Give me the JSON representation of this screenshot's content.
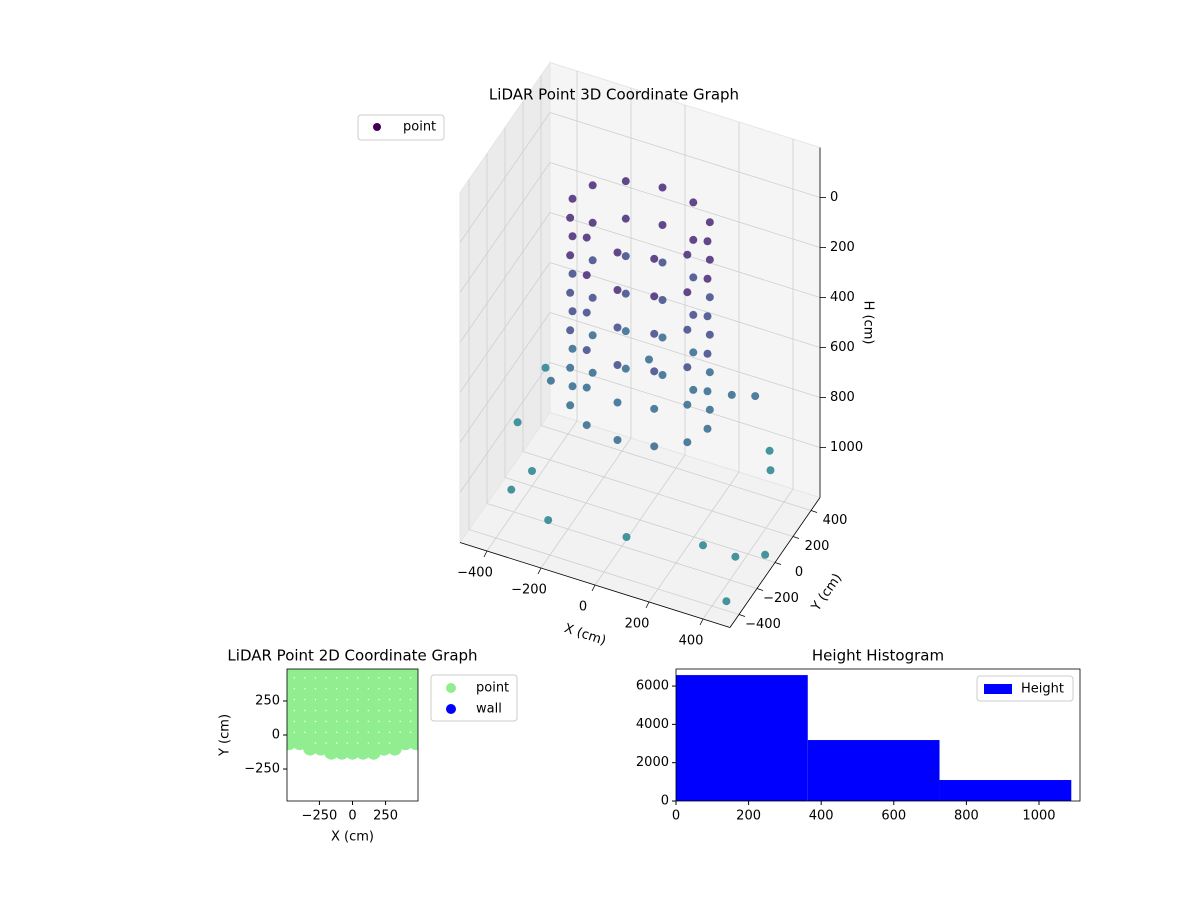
{
  "chart_data": [
    {
      "type": "scatter3d",
      "title": "LiDAR Point 3D Coordinate Graph",
      "xlabel": "X (cm)",
      "ylabel": "Y (cm)",
      "zlabel": "H (cm)",
      "xlim": [
        -500,
        500
      ],
      "ylim": [
        -500,
        500
      ],
      "zlim": [
        -200,
        1200
      ],
      "xticks": [
        {
          "value": -400,
          "label": "−400"
        },
        {
          "value": -200,
          "label": "−200"
        },
        0,
        200,
        400
      ],
      "yticks": [
        {
          "value": -400,
          "label": "−400"
        },
        {
          "value": -200,
          "label": "−200"
        },
        0,
        200,
        400
      ],
      "zticks": [
        0,
        200,
        400,
        600,
        800,
        1000
      ],
      "grid": true,
      "legend": "upper left",
      "series": [
        {
          "name": "point",
          "colormap": "viridis",
          "x": [
            250,
            217,
            125,
            0,
            -125,
            -217,
            -250,
            -217,
            -125,
            0,
            125,
            217,
            250,
            217,
            125,
            0,
            -125,
            -217,
            -250,
            -217,
            -125,
            0,
            125,
            217,
            250,
            217,
            125,
            0,
            -125,
            -217,
            -250,
            -217,
            -125,
            0,
            125,
            217,
            250,
            217,
            125,
            0,
            -125,
            -217,
            -250,
            -217,
            -125,
            0,
            125,
            217,
            250,
            217,
            125,
            0,
            -125,
            -217,
            -250,
            -217,
            -125,
            0,
            125,
            217,
            250,
            217,
            125,
            0,
            -125,
            -217,
            -250,
            -217,
            -125,
            0,
            125,
            217,
            -420,
            -380,
            -300,
            350,
            420,
            450,
            300,
            -200,
            100,
            -450,
            380,
            -350,
            480,
            200,
            -100,
            460
          ],
          "y": [
            0,
            125,
            217,
            250,
            217,
            125,
            0,
            -125,
            -217,
            -250,
            -217,
            -125,
            0,
            125,
            217,
            250,
            217,
            125,
            0,
            -125,
            -217,
            -250,
            -217,
            -125,
            0,
            125,
            217,
            250,
            217,
            125,
            0,
            -125,
            -217,
            -250,
            -217,
            -125,
            0,
            125,
            217,
            250,
            217,
            125,
            0,
            -125,
            -217,
            -250,
            -217,
            -125,
            0,
            125,
            217,
            250,
            217,
            125,
            0,
            -125,
            -217,
            -250,
            -217,
            -125,
            0,
            125,
            217,
            250,
            217,
            125,
            0,
            -125,
            -217,
            -250,
            -217,
            -125,
            -100,
            150,
            -300,
            -350,
            -200,
            100,
            380,
            -420,
            -450,
            300,
            300,
            -380,
            -50,
            420,
            400,
            -420
          ],
          "z": [
            0,
            0,
            0,
            0,
            0,
            0,
            0,
            0,
            0,
            0,
            0,
            0,
            150,
            150,
            150,
            150,
            150,
            150,
            150,
            150,
            150,
            150,
            150,
            150,
            300,
            300,
            300,
            300,
            300,
            300,
            300,
            300,
            300,
            300,
            300,
            300,
            450,
            450,
            450,
            450,
            450,
            450,
            450,
            450,
            450,
            450,
            450,
            450,
            600,
            600,
            600,
            600,
            600,
            600,
            600,
            600,
            600,
            600,
            600,
            600,
            750,
            750,
            750,
            750,
            750,
            750,
            750,
            750,
            750,
            750,
            750,
            750,
            900,
            850,
            950,
            1000,
            1100,
            900,
            800,
            1050,
            1000,
            900,
            950,
            1000,
            1150,
            850,
            800,
            1150
          ]
        }
      ]
    },
    {
      "type": "scatter",
      "title": "LiDAR Point 2D Coordinate Graph",
      "xlabel": "X (cm)",
      "ylabel": "Y (cm)",
      "xlim": [
        -495,
        495
      ],
      "ylim": [
        -485,
        485
      ],
      "xticks": [
        {
          "value": -250,
          "label": "−250"
        },
        0,
        250
      ],
      "yticks": [
        {
          "value": -250,
          "label": "−250"
        },
        0,
        250
      ],
      "legend": "outside upper right",
      "series": [
        {
          "name": "point",
          "color": "#90ee90",
          "x": [
            -480,
            -400,
            -320,
            -240,
            -160,
            -80,
            0,
            80,
            160,
            240,
            320,
            400,
            480,
            -480,
            -400,
            -320,
            -240,
            -160,
            -80,
            0,
            80,
            160,
            240,
            320,
            400,
            480,
            -480,
            -400,
            -320,
            -240,
            -160,
            -80,
            0,
            80,
            160,
            240,
            320,
            400,
            480,
            -480,
            -400,
            -320,
            -240,
            -160,
            -80,
            0,
            80,
            160,
            240,
            320,
            400,
            480,
            -480,
            -400,
            -320,
            -240,
            -160,
            -80,
            0,
            80,
            160,
            240,
            320,
            400,
            480,
            -480,
            -400,
            -320,
            -240,
            -160,
            -80,
            0,
            80,
            160,
            240,
            320,
            400,
            480,
            -480,
            -400,
            -320,
            -240,
            -160,
            -80,
            0,
            80,
            160,
            240,
            320,
            400,
            480,
            -480,
            -400,
            400,
            480,
            -320,
            -240,
            -160,
            -80,
            0,
            80,
            160,
            240,
            320,
            -160,
            -80,
            0,
            80,
            160
          ],
          "y": [
            460,
            460,
            460,
            460,
            460,
            460,
            460,
            460,
            460,
            460,
            460,
            460,
            460,
            380,
            380,
            380,
            380,
            380,
            380,
            380,
            380,
            380,
            380,
            380,
            380,
            380,
            300,
            300,
            300,
            300,
            300,
            300,
            300,
            300,
            300,
            300,
            300,
            300,
            300,
            220,
            220,
            220,
            220,
            220,
            220,
            220,
            220,
            220,
            220,
            220,
            220,
            220,
            140,
            140,
            140,
            140,
            140,
            140,
            140,
            140,
            140,
            140,
            140,
            140,
            140,
            60,
            60,
            60,
            60,
            60,
            60,
            60,
            60,
            60,
            60,
            60,
            60,
            60,
            -20,
            -20,
            -20,
            -20,
            -20,
            -20,
            -20,
            -20,
            -20,
            -20,
            -20,
            -20,
            -20,
            -60,
            -60,
            -60,
            -60,
            -100,
            -100,
            -100,
            -100,
            -100,
            -100,
            -100,
            -100,
            -100,
            -130,
            -130,
            -130,
            -130,
            -130
          ]
        },
        {
          "name": "wall",
          "color": "#0000ff",
          "x": [],
          "y": []
        }
      ]
    },
    {
      "type": "histogram",
      "title": "Height Histogram",
      "bins": [
        0,
        363,
        726,
        1089
      ],
      "series": [
        {
          "name": "Height",
          "color": "#0000ff",
          "values": [
            6573,
            3182,
            1095
          ]
        }
      ],
      "xlim": [
        0,
        1113
      ],
      "ylim": [
        0,
        6890
      ],
      "xticks": [
        0,
        200,
        400,
        600,
        800,
        1000
      ],
      "yticks": [
        0,
        2000,
        4000,
        6000
      ],
      "legend": "upper right"
    }
  ]
}
